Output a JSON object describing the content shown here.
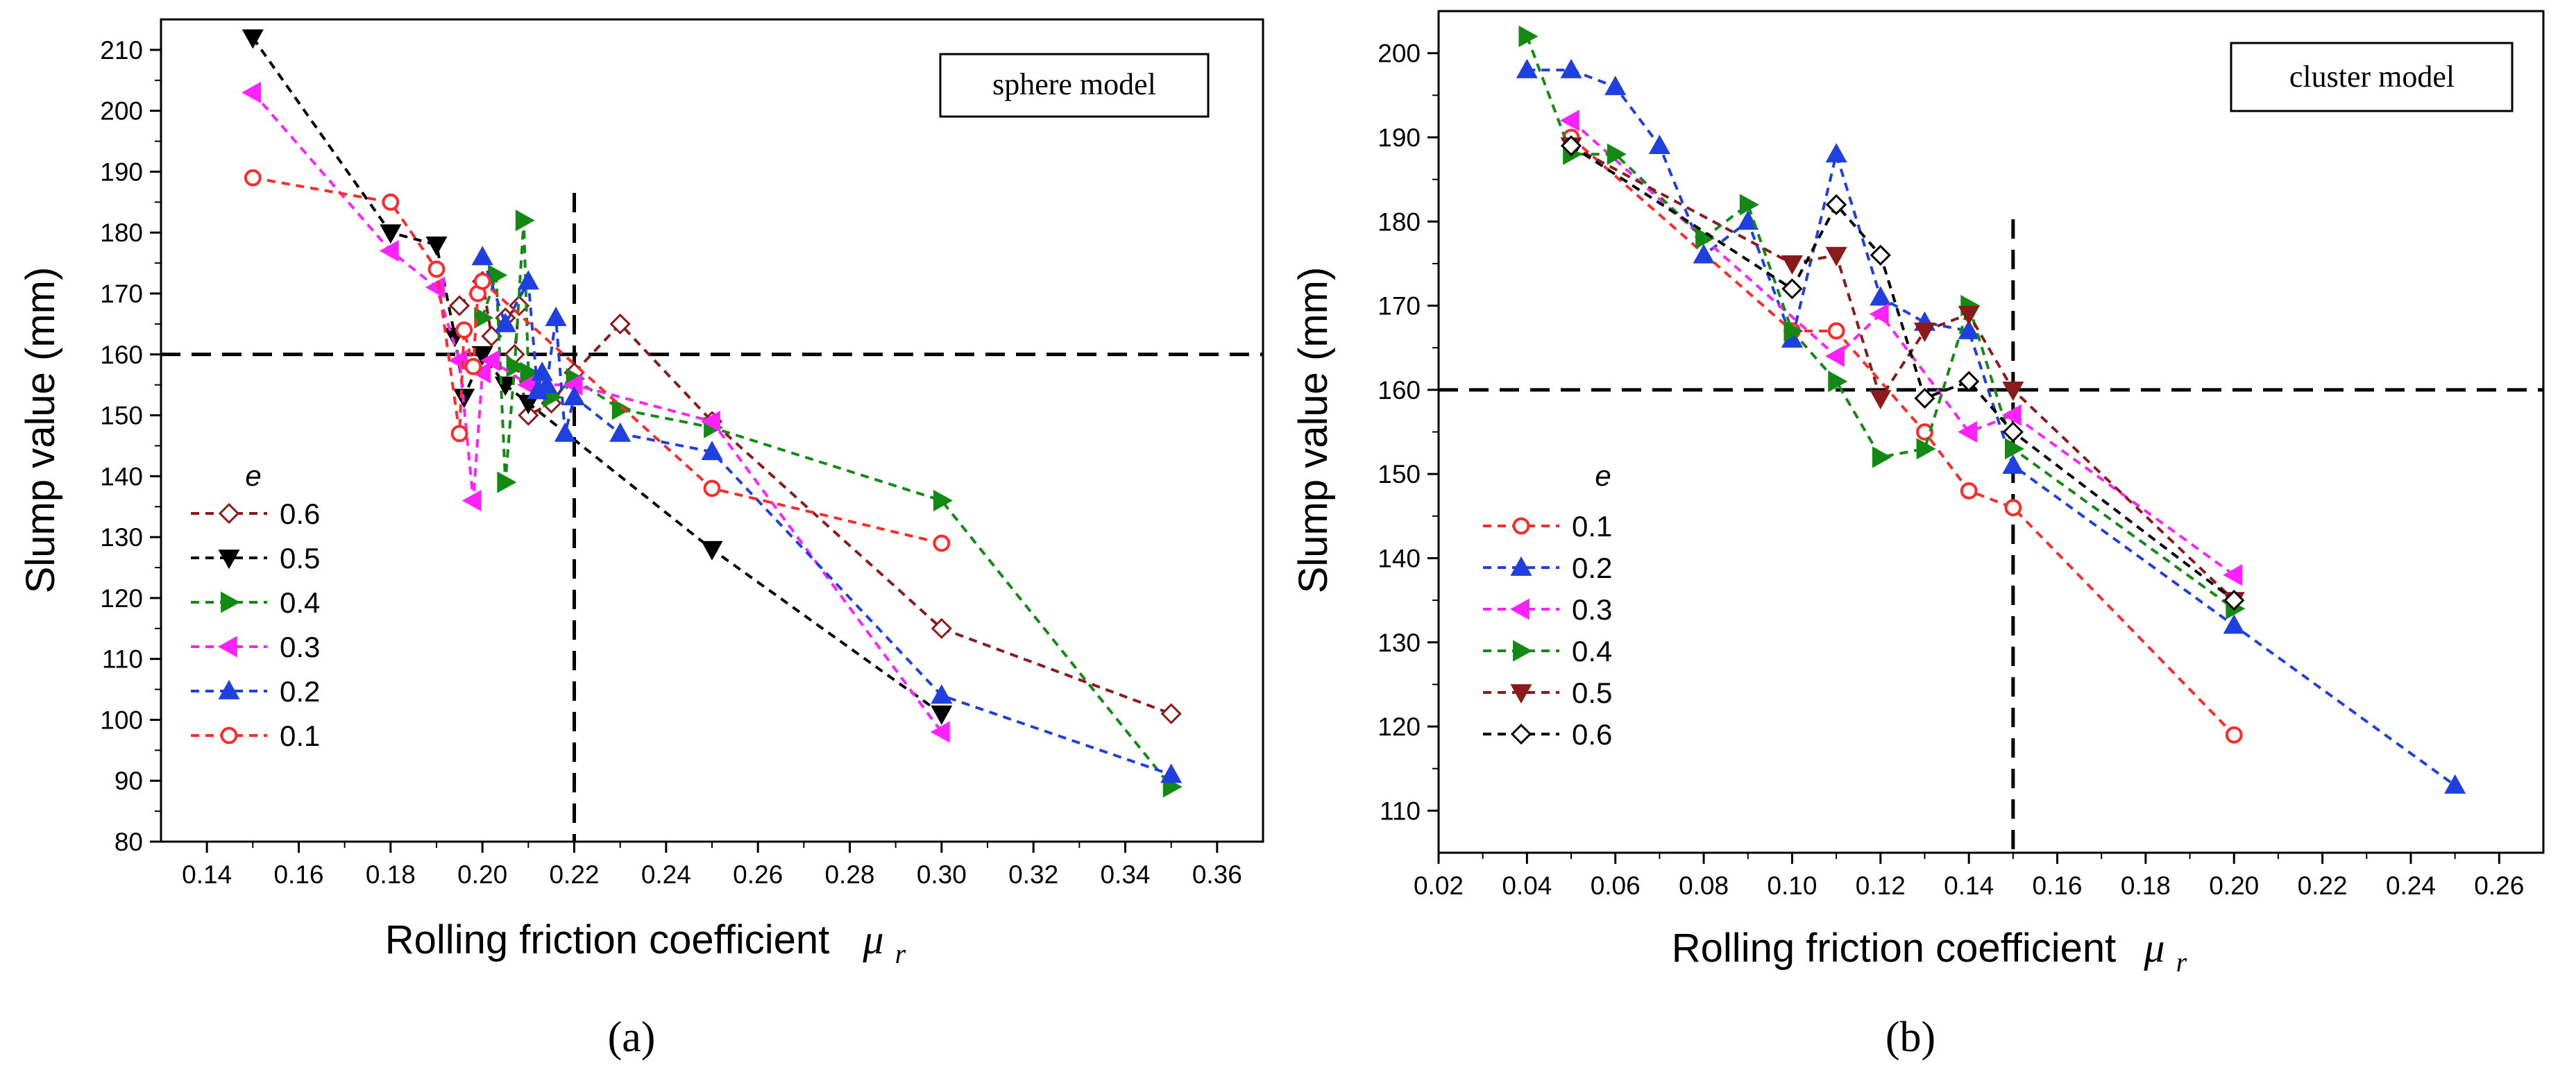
{
  "chart_data": [
    {
      "type": "line",
      "panel": "a",
      "sub_label": "(a)",
      "model_label": "sphere model",
      "xlabel": "Rolling friction coefficient",
      "xlabel_symbol": "μ",
      "xlabel_sub": "r",
      "ylabel": "Slump value (mm)",
      "xlim": [
        0.13,
        0.37
      ],
      "ylim": [
        80,
        215
      ],
      "x_ticks": [
        "0.14",
        "0.16",
        "0.18",
        "0.20",
        "0.22",
        "0.24",
        "0.26",
        "0.28",
        "0.30",
        "0.32",
        "0.34",
        "0.36"
      ],
      "y_ticks": [
        "80",
        "90",
        "100",
        "110",
        "120",
        "130",
        "140",
        "150",
        "160",
        "170",
        "180",
        "190",
        "200",
        "210"
      ],
      "ref_lines": {
        "y": 160,
        "x": 0.22
      },
      "legend_title": "e",
      "legend_position": "left-middle",
      "series": [
        {
          "name": "0.6",
          "color": "#8b1a1a",
          "marker": "diamond",
          "x": [
            0.195,
            0.2,
            0.202,
            0.205,
            0.208,
            0.207,
            0.21,
            0.215,
            0.22,
            0.23,
            0.25,
            0.3,
            0.35
          ],
          "y": [
            168,
            172,
            163,
            166,
            168,
            160,
            150,
            152,
            157,
            165,
            149,
            115,
            101
          ]
        },
        {
          "name": "0.5",
          "color": "#000000",
          "marker": "triangle-down",
          "x": [
            0.15,
            0.18,
            0.19,
            0.194,
            0.196,
            0.2,
            0.205,
            0.21,
            0.25,
            0.3
          ],
          "y": [
            212,
            180,
            178,
            163,
            153,
            160,
            155,
            152,
            128,
            101
          ]
        },
        {
          "name": "0.4",
          "color": "#138a13",
          "marker": "triangle-right",
          "x": [
            0.2,
            0.203,
            0.205,
            0.207,
            0.209,
            0.21,
            0.215,
            0.22,
            0.23,
            0.25,
            0.3,
            0.35
          ],
          "y": [
            166,
            173,
            139,
            158,
            182,
            157,
            153,
            156,
            151,
            148,
            136,
            89
          ]
        },
        {
          "name": "0.3",
          "color": "#ff22ff",
          "marker": "triangle-left",
          "x": [
            0.15,
            0.18,
            0.19,
            0.195,
            0.198,
            0.2,
            0.202,
            0.21,
            0.22,
            0.25,
            0.3
          ],
          "y": [
            203,
            177,
            171,
            159,
            136,
            157,
            159,
            155,
            155,
            149,
            98
          ]
        },
        {
          "name": "0.2",
          "color": "#1f3fe0",
          "marker": "triangle-up",
          "x": [
            0.2,
            0.205,
            0.21,
            0.212,
            0.213,
            0.214,
            0.216,
            0.218,
            0.22,
            0.23,
            0.25,
            0.3,
            0.35
          ],
          "y": [
            176,
            165,
            172,
            154,
            157,
            155,
            166,
            147,
            153,
            147,
            144,
            104,
            91
          ]
        },
        {
          "name": "0.1",
          "color": "#ff2a2a",
          "marker": "circle",
          "x": [
            0.15,
            0.18,
            0.19,
            0.195,
            0.196,
            0.198,
            0.199,
            0.2,
            0.25,
            0.3
          ],
          "y": [
            189,
            185,
            174,
            147,
            164,
            158,
            170,
            172,
            138,
            129
          ]
        }
      ]
    },
    {
      "type": "line",
      "panel": "b",
      "sub_label": "(b)",
      "model_label": "cluster model",
      "xlabel": "Rolling friction coefficient",
      "xlabel_symbol": "μ",
      "xlabel_sub": "r",
      "ylabel": "Slump value (mm)",
      "xlim": [
        0.02,
        0.27
      ],
      "ylim": [
        105,
        205
      ],
      "x_ticks": [
        "0.02",
        "0.04",
        "0.06",
        "0.08",
        "0.10",
        "0.12",
        "0.14",
        "0.16",
        "0.18",
        "0.20",
        "0.22",
        "0.24",
        "0.26"
      ],
      "y_ticks": [
        "110",
        "120",
        "130",
        "140",
        "150",
        "160",
        "170",
        "180",
        "190",
        "200"
      ],
      "ref_lines": {
        "y": 160,
        "x": 0.15
      },
      "legend_title": "e",
      "legend_position": "left-bottom",
      "series": [
        {
          "name": "0.1",
          "color": "#ff2a2a",
          "marker": "circle",
          "x": [
            0.05,
            0.1,
            0.11,
            0.13,
            0.14,
            0.15,
            0.2
          ],
          "y": [
            190,
            167,
            167,
            155,
            148,
            146,
            119
          ]
        },
        {
          "name": "0.2",
          "color": "#1f3fe0",
          "marker": "triangle-up",
          "x": [
            0.04,
            0.05,
            0.06,
            0.07,
            0.08,
            0.09,
            0.1,
            0.11,
            0.12,
            0.13,
            0.14,
            0.15,
            0.2,
            0.25
          ],
          "y": [
            198,
            198,
            196,
            189,
            176,
            180,
            166,
            188,
            171,
            168,
            167,
            151,
            132,
            113
          ]
        },
        {
          "name": "0.3",
          "color": "#ff22ff",
          "marker": "triangle-left",
          "x": [
            0.05,
            0.11,
            0.12,
            0.14,
            0.15,
            0.2
          ],
          "y": [
            192,
            164,
            169,
            155,
            157,
            138
          ]
        },
        {
          "name": "0.4",
          "color": "#138a13",
          "marker": "triangle-right",
          "x": [
            0.04,
            0.05,
            0.06,
            0.08,
            0.09,
            0.1,
            0.11,
            0.12,
            0.13,
            0.14,
            0.15,
            0.2
          ],
          "y": [
            202,
            188,
            188,
            178,
            182,
            167,
            161,
            152,
            153,
            170,
            153,
            134
          ]
        },
        {
          "name": "0.5",
          "color": "#8b1a1a",
          "marker": "triangle-down",
          "x": [
            0.05,
            0.1,
            0.11,
            0.12,
            0.13,
            0.14,
            0.15,
            0.2
          ],
          "y": [
            189,
            175,
            176,
            159,
            167,
            169,
            160,
            135
          ]
        },
        {
          "name": "0.6",
          "color": "#000000",
          "marker": "diamond",
          "x": [
            0.05,
            0.1,
            0.11,
            0.12,
            0.13,
            0.14,
            0.15,
            0.2
          ],
          "y": [
            189,
            172,
            182,
            176,
            159,
            161,
            155,
            135
          ]
        }
      ]
    }
  ]
}
